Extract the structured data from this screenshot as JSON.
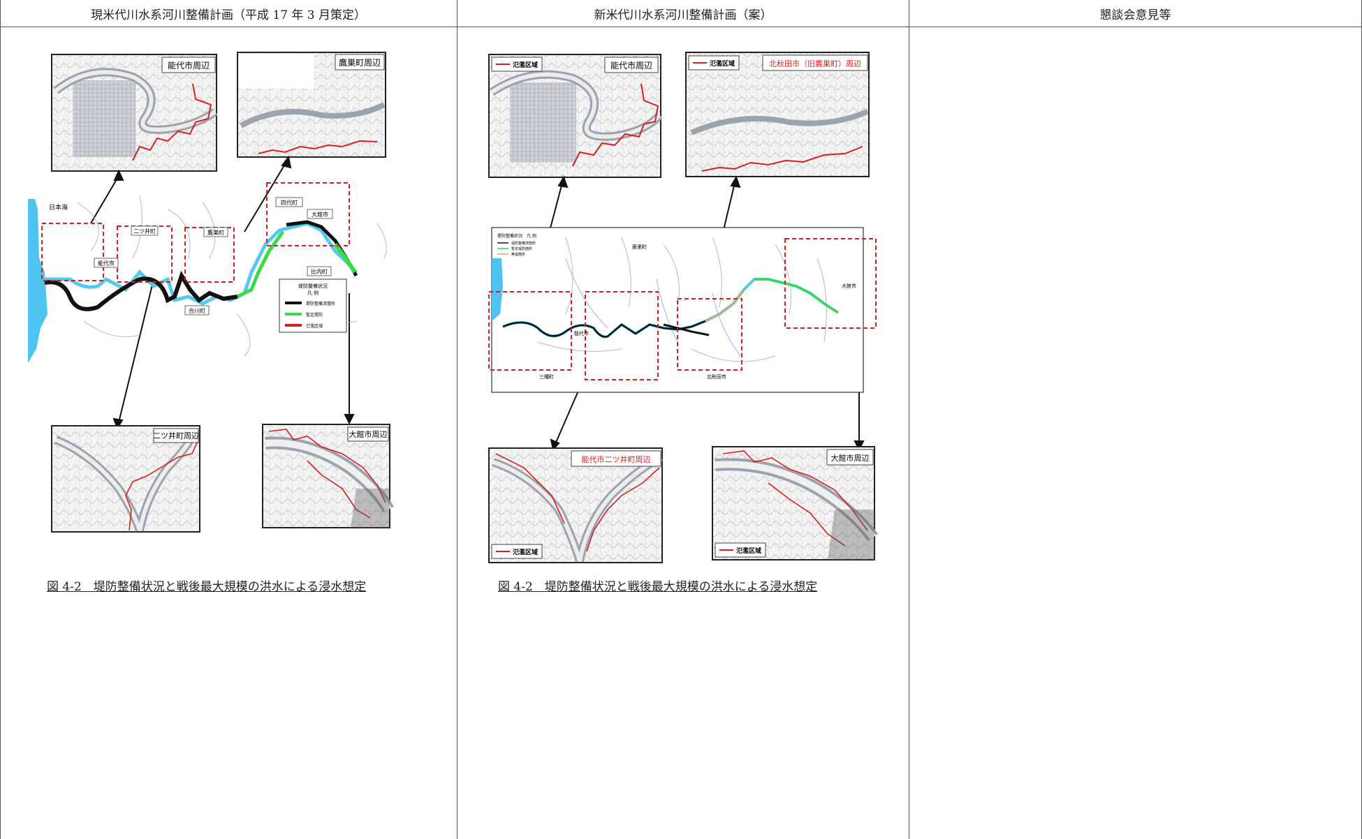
{
  "table": {
    "headers": [
      "現米代川水系河川整備計画（平成 17 年 3 月策定）",
      "新米代川水系河川整備計画（案）",
      "懇談会意見等"
    ]
  },
  "left_figure": {
    "inset_top_left": "能代市周辺",
    "inset_top_right": "鷹巣町周辺",
    "inset_bottom_left": "二ツ井町周辺",
    "inset_bottom_right": "大館市周辺",
    "sea_label": "日本海",
    "town_labels": [
      "四代町",
      "大館市",
      "能代市",
      "二ツ井町",
      "鷹巣町",
      "比内町",
      "合川町"
    ],
    "legend_title": "堤防整備状況",
    "legend_sub": "凡 例",
    "legend_items": [
      "堤防整備済箇所",
      "暫定堤防",
      "氾濫区域"
    ],
    "caption": "図 4-2　堤防整備状況と戦後最大規模の洪水による浸水想定"
  },
  "right_figure": {
    "inset_top_left": "能代市周辺",
    "inset_top_right": "北秋田市（旧鷹巣町）周辺",
    "inset_bottom_left": "能代市二ツ井町周辺",
    "inset_bottom_right": "大館市周辺",
    "flood_legend": "氾濫区域",
    "legend_title": "堤防整備状況　凡 例",
    "legend_items": [
      "堤防整備済箇所",
      "暫定堤防箇所",
      "無堤箇所"
    ],
    "town_labels": [
      "藤里町",
      "能代市",
      "三種町",
      "北秋田市",
      "大館市"
    ],
    "caption": "図 4-2　堤防整備状況と戦後最大規模の洪水による浸水想定"
  },
  "colors": {
    "flood_red": "#d42020",
    "sea_blue": "#4fc3f0",
    "levee_black": "#111111",
    "provisional_green": "#39d94a",
    "river_blue": "#56c8ee"
  }
}
